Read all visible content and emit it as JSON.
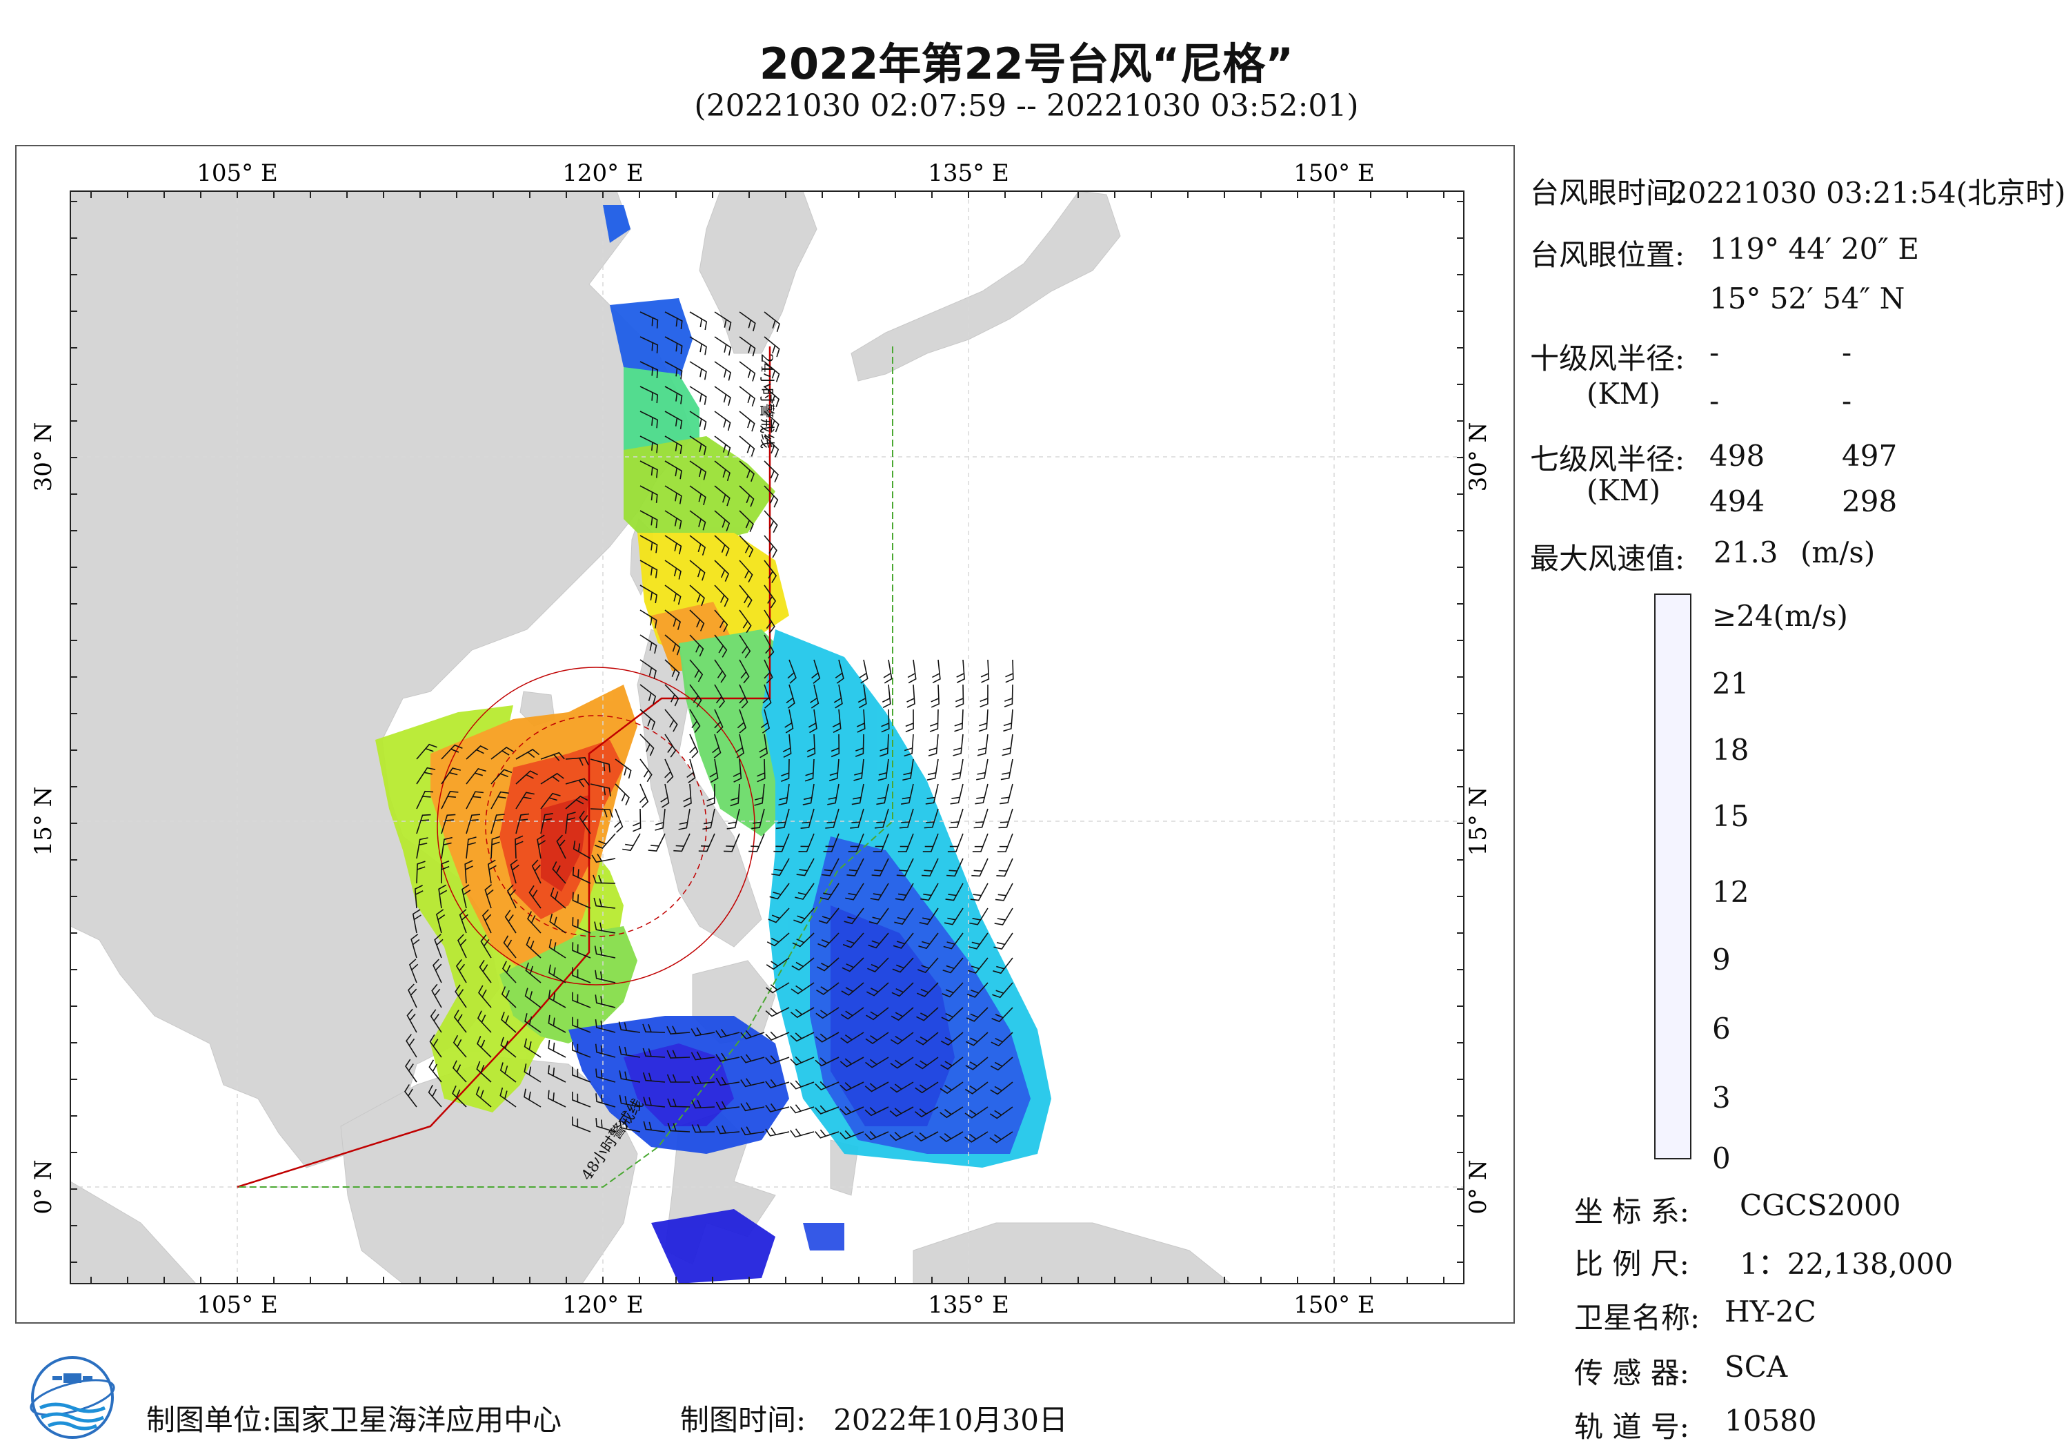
{
  "title": "2022年第22号台风“尼格”",
  "time_range": "(20221030 02:07:59 -- 20221030 03:52:01)",
  "map": {
    "lon_labels": [
      "105° E",
      "120° E",
      "135° E",
      "150° E"
    ],
    "lat_labels": [
      "30° N",
      "15° N",
      "0° N"
    ],
    "warning_line_24h": "24小时警戒线",
    "warning_line_48h": "48小时警戒线",
    "colors": {
      "land": "#d6d6d6",
      "sea": "#ffffff",
      "warning_line_24h": "#c00000",
      "warning_line_48h": "#4aa832",
      "wind_barb": "#111111"
    }
  },
  "info": {
    "eye_time_label": "台风眼时间:",
    "eye_time_value": "20221030 03:21:54(北京时)",
    "eye_pos_label": "台风眼位置:",
    "eye_lon": "119° 44′ 20″ E",
    "eye_lat": "15° 52′ 54″ N",
    "r10_label": "十级风半径:",
    "r10_unit": "(KM)",
    "r10_values": [
      "-",
      "-",
      "-",
      "-"
    ],
    "r7_label": "七级风半径:",
    "r7_unit": "(KM)",
    "r7_values": [
      "498",
      "497",
      "494",
      "298"
    ],
    "max_wind_label": "最大风速值:",
    "max_wind_value": "21.3",
    "max_wind_unit": "(m/s)"
  },
  "colorbar": {
    "ticks": [
      "≥24(m/s)",
      "21",
      "18",
      "15",
      "12",
      "9",
      "6",
      "3",
      "0"
    ],
    "stops": [
      "#f4f4ff",
      "#b8b8ee",
      "#2222dd",
      "#1f5ee8",
      "#14a8f0",
      "#22e0e0",
      "#4cdd8c",
      "#b8ea30",
      "#f4e418",
      "#f7a020",
      "#ee4a14",
      "#b40000"
    ]
  },
  "meta": {
    "coord_label": "坐 标 系:",
    "coord_value": "CGCS2000",
    "scale_label": "比 例 尺:",
    "scale_value": "1：22,138,000",
    "satellite_label": "卫星名称:",
    "satellite_value": "HY-2C",
    "sensor_label": "传 感 器:",
    "sensor_value": "SCA",
    "orbit_label": "轨 道 号:",
    "orbit_value": "10580"
  },
  "footer": {
    "unit_label": "制图单位:",
    "unit_value": "国家卫星海洋应用中心",
    "time_label": "制图时间:",
    "time_value": "2022年10月30日"
  }
}
